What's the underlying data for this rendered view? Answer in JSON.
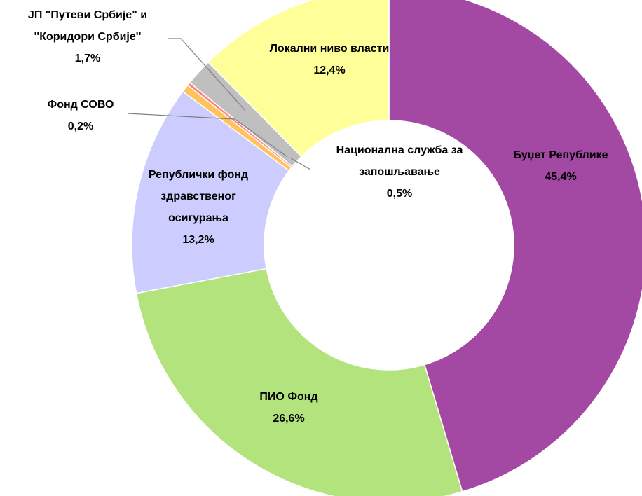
{
  "chart_data": {
    "type": "donut",
    "categories": [
      [
        "Буџет Републике"
      ],
      [
        "ПИО Фонд"
      ],
      [
        "Републички фонд",
        "здравственог",
        "осигурања"
      ],
      [
        "Национална служба за",
        "запошљавање"
      ],
      [
        "Фонд СОВО"
      ],
      [
        "ЈП \"Путеви Србије\" и",
        "''Коридори Србије''"
      ],
      [
        "Локални ниво власти"
      ]
    ],
    "values": [
      45.4,
      26.6,
      13.2,
      0.5,
      0.2,
      1.7,
      12.4
    ],
    "value_labels": [
      "45,4%",
      "26,6%",
      "13,2%",
      "0,5%",
      "0,2%",
      "1,7%",
      "12,4%"
    ],
    "colors": [
      "#a349a4",
      "#b3e37c",
      "#ccccff",
      "#ffc35a",
      "#ff7f7f",
      "#bfbfbf",
      "#ffff99"
    ]
  }
}
